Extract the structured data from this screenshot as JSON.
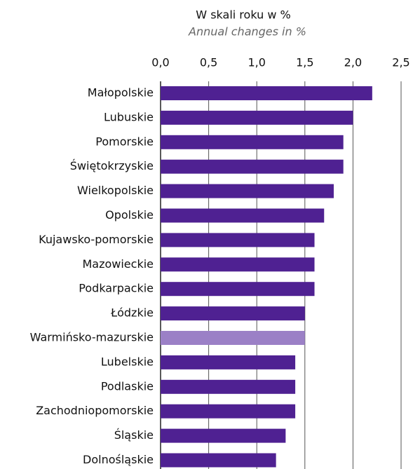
{
  "chart_data": {
    "type": "bar",
    "orientation": "horizontal",
    "title": "W skali roku w %",
    "subtitle": "Annual changes in %",
    "categories": [
      "Małopolskie",
      "Lubuskie",
      "Pomorskie",
      "Świętokrzyskie",
      "Wielkopolskie",
      "Opolskie",
      "Kujawsko-pomorskie",
      "Mazowieckie",
      "Podkarpackie",
      "Łódzkie",
      "Warmińsko-mazurskie",
      "Lubelskie",
      "Podlaskie",
      "Zachodniopomorskie",
      "Śląskie",
      "Dolnośląskie"
    ],
    "values": [
      2.2,
      2.0,
      1.9,
      1.9,
      1.8,
      1.7,
      1.6,
      1.6,
      1.6,
      1.5,
      1.5,
      1.4,
      1.4,
      1.4,
      1.3,
      1.2
    ],
    "colors": [
      "#4f2192",
      "#4f2192",
      "#4f2192",
      "#4f2192",
      "#4f2192",
      "#4f2192",
      "#4f2192",
      "#4f2192",
      "#4f2192",
      "#4f2192",
      "#9b80c6",
      "#4f2192",
      "#4f2192",
      "#4f2192",
      "#4f2192",
      "#4f2192"
    ],
    "xlim": [
      0,
      2.5
    ],
    "xticks": [
      {
        "value": 0,
        "label": "0,0"
      },
      {
        "value": 0.5,
        "label": "0,5"
      },
      {
        "value": 1.0,
        "label": "1,0"
      },
      {
        "value": 1.5,
        "label": "1,5"
      },
      {
        "value": 2.0,
        "label": "2,0"
      },
      {
        "value": 2.5,
        "label": "2,5"
      }
    ],
    "grid": true
  }
}
